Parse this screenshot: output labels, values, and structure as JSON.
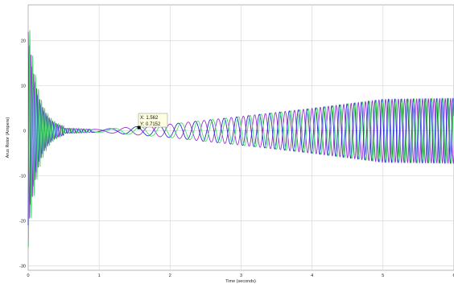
{
  "chart_data": {
    "type": "line",
    "title": "",
    "xlabel": "Time (seconds)",
    "ylabel": "Arus Rotor (Ampere)",
    "xlim": [
      0,
      6
    ],
    "ylim": [
      -31,
      28
    ],
    "grid": true,
    "x_ticks": [
      0,
      1,
      2,
      3,
      4,
      5,
      6
    ],
    "y_ticks": [
      -30,
      -20,
      -10,
      0,
      10,
      20
    ],
    "x_tick_labels": [
      "0",
      "1",
      "2",
      "3",
      "4",
      "5",
      "6"
    ],
    "y_tick_labels": [
      "-30",
      "-20",
      "-10",
      "0",
      "10",
      "20"
    ],
    "series": [
      {
        "color": "#9b30d0",
        "start_value": 22,
        "description_points": {
          "x": [
            0,
            0.5,
            1,
            1.6,
            2,
            3,
            4,
            5,
            6
          ],
          "amplitude": [
            22,
            0.6,
            0.3,
            1.0,
            1.5,
            3.2,
            5.0,
            7.0,
            7.2
          ]
        }
      },
      {
        "color": "#2a2ad0",
        "start_value": -21,
        "description_points": {
          "x": [
            0,
            0.5,
            1,
            1.6,
            2,
            3,
            4,
            5,
            6
          ],
          "amplitude": [
            21,
            0.6,
            0.3,
            1.0,
            1.5,
            3.2,
            5.0,
            7.0,
            7.2
          ]
        }
      },
      {
        "color": "#44dd66",
        "start_value": -26,
        "description_points": {
          "x": [
            0,
            0.5,
            1,
            1.6,
            2,
            3,
            4,
            5,
            6
          ],
          "amplitude": [
            26,
            0.6,
            0.3,
            1.0,
            1.5,
            3.2,
            5.0,
            7.0,
            7.2
          ]
        }
      }
    ],
    "datatip": {
      "x": 1.562,
      "y": 0.7152,
      "x_text": "X: 1.562",
      "y_text": "Y: 0.7152"
    }
  }
}
